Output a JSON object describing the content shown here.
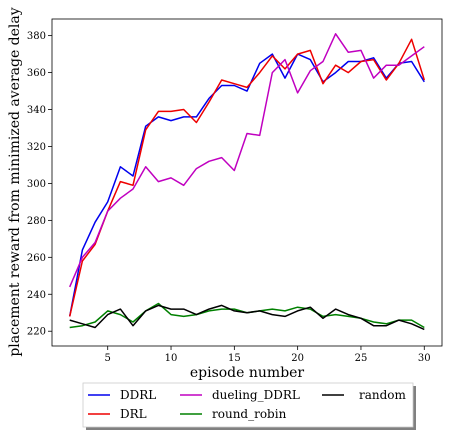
{
  "chart_data": {
    "type": "line",
    "title": "",
    "xlabel": "episode number",
    "ylabel": "placement reward from minimized average delay",
    "xlim": [
      0.6,
      31.4
    ],
    "ylim": [
      212,
      389
    ],
    "xticks": [
      5,
      10,
      15,
      20,
      25,
      30
    ],
    "yticks": [
      220,
      240,
      260,
      280,
      300,
      320,
      340,
      360,
      380
    ],
    "grid": false,
    "legend_position": "below, three columns",
    "x": [
      2,
      3,
      4,
      5,
      6,
      7,
      8,
      9,
      10,
      11,
      12,
      13,
      14,
      15,
      16,
      17,
      18,
      19,
      20,
      21,
      22,
      23,
      24,
      25,
      26,
      27,
      28,
      29,
      30
    ],
    "series": [
      {
        "name": "DDRL",
        "color": "#0000ee",
        "values": [
          228,
          264,
          279,
          290,
          309,
          304,
          331,
          336,
          334,
          336,
          336,
          346,
          353,
          353,
          350,
          365,
          370,
          357,
          370,
          367,
          355,
          360,
          366,
          366,
          368,
          357,
          365,
          366,
          355
        ]
      },
      {
        "name": "DRL",
        "color": "#ee0000",
        "values": [
          228,
          258,
          267,
          285,
          301,
          299,
          329,
          339,
          339,
          340,
          333,
          344,
          356,
          354,
          352,
          360,
          369,
          362,
          370,
          372,
          354,
          364,
          360,
          366,
          367,
          356,
          365,
          378,
          356
        ]
      },
      {
        "name": "dueling_DDRL",
        "color": "#c000c0",
        "values": [
          244,
          260,
          268,
          285,
          292,
          297,
          309,
          301,
          303,
          299,
          308,
          312,
          314,
          307,
          327,
          326,
          360,
          367,
          349,
          361,
          366,
          381,
          371,
          372,
          357,
          364,
          364,
          369,
          374
        ]
      },
      {
        "name": "round_robin",
        "color": "#008000",
        "values": [
          222,
          223,
          225,
          231,
          229,
          225,
          231,
          235,
          229,
          228,
          229,
          231,
          232,
          232,
          230,
          231,
          232,
          231,
          233,
          232,
          228,
          229,
          228,
          227,
          225,
          224,
          226,
          226,
          222
        ]
      },
      {
        "name": "random",
        "color": "#000000",
        "values": [
          226,
          224,
          222,
          229,
          232,
          223,
          231,
          234,
          232,
          232,
          229,
          232,
          234,
          231,
          230,
          231,
          229,
          228,
          231,
          233,
          227,
          232,
          229,
          227,
          223,
          223,
          226,
          224,
          221
        ]
      }
    ]
  }
}
